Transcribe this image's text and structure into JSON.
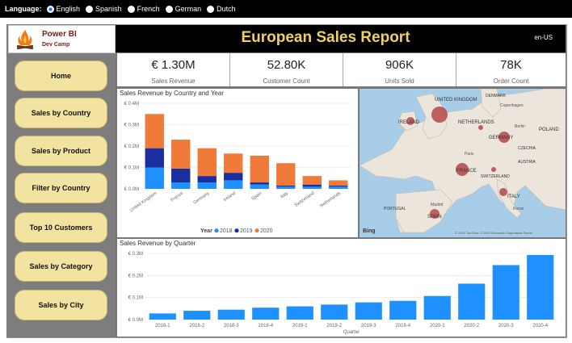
{
  "language_bar": {
    "label": "Language:",
    "options": [
      {
        "label": "English",
        "checked": true
      },
      {
        "label": "Spanish",
        "checked": false
      },
      {
        "label": "French",
        "checked": false
      },
      {
        "label": "German",
        "checked": false
      },
      {
        "label": "Dutch",
        "checked": false
      }
    ]
  },
  "logo": {
    "title": "Power BI",
    "subtitle": "Dev Camp"
  },
  "header": {
    "title": "European Sales Report",
    "locale": "en-US"
  },
  "nav": [
    {
      "label": "Home"
    },
    {
      "label": "Sales by Country"
    },
    {
      "label": "Sales by Product"
    },
    {
      "label": "Filter by Country"
    },
    {
      "label": "Top 10 Customers"
    },
    {
      "label": "Sales by Category"
    },
    {
      "label": "Sales by City"
    }
  ],
  "kpis": [
    {
      "value": "€ 1.30M",
      "label": "Sales Revenue"
    },
    {
      "value": "52.80K",
      "label": "Customer Count"
    },
    {
      "value": "906K",
      "label": "Units Sold"
    },
    {
      "value": "78K",
      "label": "Order Count"
    }
  ],
  "colors": {
    "y2018": "#1e90ff",
    "y2019": "#1a2ea0",
    "y2020": "#f07a3a",
    "quarter_bar": "#1e90ff"
  },
  "map": {
    "labels": [
      "UNITED KINGDOM",
      "IRELAND",
      "NETHERLANDS",
      "GERMANY",
      "FRANCE",
      "SPAIN",
      "ITALY",
      "POLAND",
      "DENMARK",
      "CZECHIA",
      "AUSTRIA",
      "SWITZERLAND",
      "PORTUGAL",
      "Copenhagen",
      "Paris",
      "Madrid",
      "Berlin",
      "Rome"
    ],
    "attribution": "© 2021 TomTom, © 2021 Microsoft Corporation Terms",
    "bing": "Bing"
  },
  "chart_data": [
    {
      "type": "bar",
      "title": "Sales Revenue by Country and Year",
      "stacked": true,
      "categories": [
        "United Kingdom",
        "France",
        "Germany",
        "Ireland",
        "Spain",
        "Italy",
        "Switzerland",
        "Netherlands"
      ],
      "series": [
        {
          "name": "2018",
          "values": [
            0.1,
            0.03,
            0.03,
            0.04,
            0.02,
            0.01,
            0.01,
            0.01
          ]
        },
        {
          "name": "2019",
          "values": [
            0.09,
            0.065,
            0.03,
            0.035,
            0.01,
            0.005,
            0.01,
            0.005
          ]
        },
        {
          "name": "2020",
          "values": [
            0.16,
            0.135,
            0.13,
            0.09,
            0.125,
            0.105,
            0.04,
            0.025
          ]
        }
      ],
      "yticks": [
        "€ 0.0M",
        "€ 0.1M",
        "€ 0.2M",
        "€ 0.3M",
        "€ 0.4M"
      ],
      "ylim": [
        0,
        0.4
      ],
      "legend_title": "Year",
      "legend": [
        "2018",
        "2019",
        "2020"
      ],
      "legend_position": "bottom"
    },
    {
      "type": "bar",
      "title": "Sales Revenue by Quarter",
      "xlabel": "Quarter",
      "categories": [
        "2018-1",
        "2018-2",
        "2018-3",
        "2018-4",
        "2019-1",
        "2019-2",
        "2019-3",
        "2019-4",
        "2020-1",
        "2020-2",
        "2020-3",
        "2020-4"
      ],
      "values": [
        0.028,
        0.04,
        0.045,
        0.054,
        0.06,
        0.068,
        0.078,
        0.085,
        0.107,
        0.163,
        0.247,
        0.293
      ],
      "yticks": [
        "€ 0.0M",
        "€ 0.1M",
        "€ 0.2M",
        "€ 0.3M"
      ],
      "ylim": [
        0,
        0.3
      ]
    }
  ]
}
